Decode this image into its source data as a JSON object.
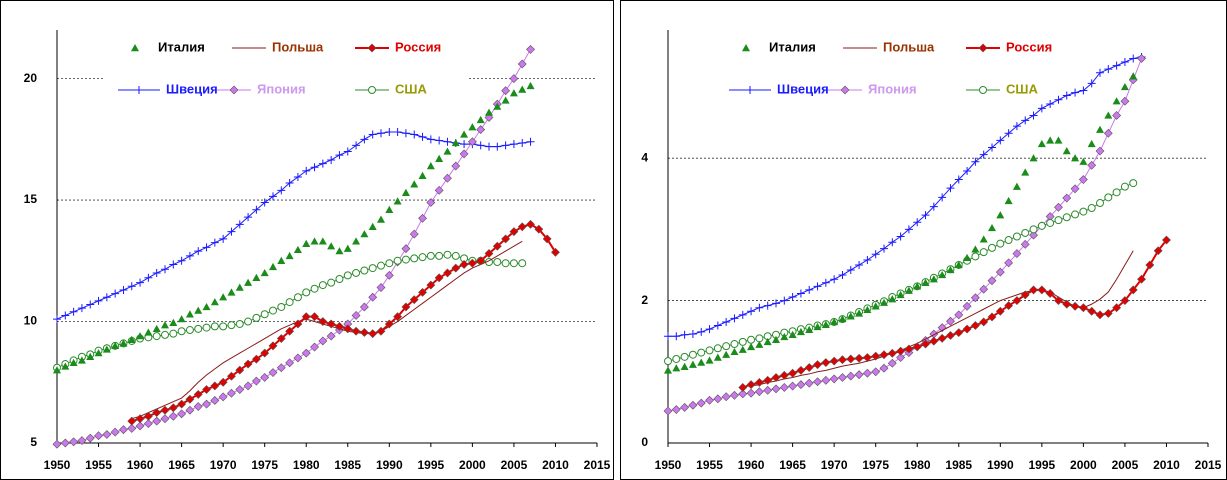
{
  "chart_data": [
    {
      "type": "line",
      "xlim": [
        1950,
        2015
      ],
      "xticks": [
        1950,
        1955,
        1960,
        1965,
        1970,
        1975,
        1980,
        1985,
        1990,
        1995,
        2000,
        2005,
        2010,
        2015
      ],
      "ylim": [
        5,
        22
      ],
      "yticks": [
        5,
        10,
        15,
        20
      ],
      "grid": true,
      "x": [
        1950,
        1951,
        1952,
        1953,
        1954,
        1955,
        1956,
        1957,
        1958,
        1959,
        1960,
        1961,
        1962,
        1963,
        1964,
        1965,
        1966,
        1967,
        1968,
        1969,
        1970,
        1971,
        1972,
        1973,
        1974,
        1975,
        1976,
        1977,
        1978,
        1979,
        1980,
        1981,
        1982,
        1983,
        1984,
        1985,
        1986,
        1987,
        1988,
        1989,
        1990,
        1991,
        1992,
        1993,
        1994,
        1995,
        1996,
        1997,
        1998,
        1999,
        2000,
        2001,
        2002,
        2003,
        2004,
        2005,
        2006,
        2007,
        2008,
        2009,
        2010
      ],
      "series": [
        {
          "name": "Италия",
          "color": "#1a8c1a",
          "label_color": "#000000",
          "marker": "triangle",
          "line": false,
          "values": [
            8.0,
            8.15,
            8.3,
            8.4,
            8.55,
            8.7,
            8.85,
            9.0,
            9.1,
            9.25,
            9.4,
            9.55,
            9.7,
            9.85,
            9.95,
            10.1,
            10.3,
            10.45,
            10.6,
            10.8,
            11.0,
            11.2,
            11.4,
            11.6,
            11.8,
            12.0,
            12.25,
            12.5,
            12.7,
            12.95,
            13.2,
            13.3,
            13.3,
            13.1,
            12.9,
            13.0,
            13.3,
            13.6,
            13.9,
            14.2,
            14.6,
            14.95,
            15.3,
            15.65,
            16.0,
            16.4,
            16.7,
            17.0,
            17.35,
            17.7,
            18.0,
            18.3,
            18.6,
            18.85,
            19.1,
            19.4,
            19.55,
            19.7,
            null,
            null,
            null
          ]
        },
        {
          "name": "Польша",
          "color": "#8b1a1a",
          "label_color": "#993300",
          "marker": "none",
          "line": true,
          "values": [
            null,
            null,
            null,
            null,
            null,
            null,
            null,
            null,
            null,
            6.0,
            6.1,
            6.25,
            6.4,
            6.55,
            6.7,
            6.85,
            7.15,
            7.5,
            7.8,
            8.05,
            8.3,
            8.5,
            8.7,
            8.9,
            9.1,
            9.3,
            9.5,
            9.7,
            9.85,
            10.0,
            10.1,
            10.0,
            9.9,
            9.8,
            9.7,
            9.6,
            9.55,
            9.5,
            9.5,
            9.6,
            9.8,
            10.0,
            10.25,
            10.5,
            10.75,
            11.0,
            11.25,
            11.5,
            11.75,
            12.0,
            12.2,
            12.35,
            12.5,
            12.7,
            12.9,
            13.1,
            13.3,
            null,
            null,
            null,
            null
          ]
        },
        {
          "name": "Россия",
          "color": "#e00000",
          "label_color": "#e00000",
          "marker": "diamond",
          "line": true,
          "values": [
            null,
            null,
            null,
            null,
            null,
            null,
            null,
            null,
            null,
            5.9,
            6.0,
            6.1,
            6.25,
            6.35,
            6.45,
            6.6,
            6.8,
            7.0,
            7.2,
            7.35,
            7.5,
            7.75,
            8.0,
            8.25,
            8.45,
            8.7,
            9.0,
            9.3,
            9.6,
            9.9,
            10.2,
            10.2,
            10.0,
            9.9,
            9.8,
            9.7,
            9.6,
            9.55,
            9.5,
            9.6,
            9.9,
            10.2,
            10.6,
            10.9,
            11.2,
            11.5,
            11.8,
            12.0,
            12.2,
            12.35,
            12.4,
            12.5,
            12.8,
            13.1,
            13.4,
            13.7,
            13.9,
            14.0,
            13.8,
            13.4,
            12.85
          ]
        },
        {
          "name": "Швеция",
          "color": "#1a1aff",
          "label_color": "#1a1aff",
          "marker": "plus",
          "line": true,
          "values": [
            10.1,
            10.25,
            10.4,
            10.55,
            10.7,
            10.85,
            11.0,
            11.15,
            11.3,
            11.45,
            11.6,
            11.8,
            12.0,
            12.15,
            12.35,
            12.5,
            12.7,
            12.9,
            13.05,
            13.25,
            13.4,
            13.7,
            14.0,
            14.3,
            14.6,
            14.9,
            15.15,
            15.4,
            15.7,
            15.95,
            16.2,
            16.35,
            16.5,
            16.65,
            16.85,
            17.0,
            17.25,
            17.5,
            17.7,
            17.75,
            17.8,
            17.8,
            17.75,
            17.7,
            17.6,
            17.5,
            17.45,
            17.4,
            17.35,
            17.3,
            17.3,
            17.25,
            17.2,
            17.2,
            17.25,
            17.3,
            17.35,
            17.4,
            null,
            null,
            null
          ]
        },
        {
          "name": "Япония",
          "color": "#cc77ee",
          "label_color": "#cc99ee",
          "marker": "diamond",
          "line": true,
          "values": [
            4.95,
            5.0,
            5.05,
            5.1,
            5.2,
            5.3,
            5.35,
            5.45,
            5.55,
            5.6,
            5.7,
            5.8,
            5.9,
            6.0,
            6.1,
            6.2,
            6.35,
            6.5,
            6.6,
            6.75,
            6.9,
            7.05,
            7.2,
            7.35,
            7.55,
            7.7,
            7.9,
            8.1,
            8.3,
            8.5,
            8.7,
            8.95,
            9.2,
            9.4,
            9.65,
            9.9,
            10.25,
            10.6,
            11.0,
            11.4,
            11.9,
            12.45,
            13.0,
            13.6,
            14.25,
            14.9,
            15.4,
            15.9,
            16.4,
            16.9,
            17.4,
            17.9,
            18.4,
            18.95,
            19.5,
            20.0,
            20.6,
            21.2,
            null,
            null,
            null
          ]
        },
        {
          "name": "США",
          "color": "#2e8b2e",
          "label_color": "#999900",
          "marker": "circle",
          "line": true,
          "values": [
            8.1,
            8.25,
            8.4,
            8.55,
            8.65,
            8.8,
            8.9,
            9.0,
            9.1,
            9.2,
            9.3,
            9.35,
            9.4,
            9.45,
            9.5,
            9.6,
            9.65,
            9.7,
            9.75,
            9.8,
            9.8,
            9.85,
            9.9,
            10.0,
            10.15,
            10.3,
            10.45,
            10.6,
            10.8,
            11.0,
            11.2,
            11.35,
            11.5,
            11.6,
            11.75,
            11.9,
            12.0,
            12.1,
            12.2,
            12.3,
            12.4,
            12.5,
            12.55,
            12.6,
            12.65,
            12.7,
            12.7,
            12.75,
            12.7,
            12.6,
            12.5,
            12.5,
            12.45,
            12.45,
            12.4,
            12.4,
            12.4,
            null,
            null,
            null,
            null
          ]
        }
      ]
    },
    {
      "type": "line",
      "xlim": [
        1950,
        2015
      ],
      "xticks": [
        1950,
        1955,
        1960,
        1965,
        1970,
        1975,
        1980,
        1985,
        1990,
        1995,
        2000,
        2005,
        2010,
        2015
      ],
      "ylim": [
        0,
        5.8
      ],
      "yticks": [
        0,
        2,
        4
      ],
      "grid": true,
      "x": [
        1950,
        1951,
        1952,
        1953,
        1954,
        1955,
        1956,
        1957,
        1958,
        1959,
        1960,
        1961,
        1962,
        1963,
        1964,
        1965,
        1966,
        1967,
        1968,
        1969,
        1970,
        1971,
        1972,
        1973,
        1974,
        1975,
        1976,
        1977,
        1978,
        1979,
        1980,
        1981,
        1982,
        1983,
        1984,
        1985,
        1986,
        1987,
        1988,
        1989,
        1990,
        1991,
        1992,
        1993,
        1994,
        1995,
        1996,
        1997,
        1998,
        1999,
        2000,
        2001,
        2002,
        2003,
        2004,
        2005,
        2006,
        2007,
        2008,
        2009,
        2010
      ],
      "series": [
        {
          "name": "Италия",
          "color": "#1a8c1a",
          "label_color": "#000000",
          "marker": "triangle",
          "line": false,
          "values": [
            1.02,
            1.05,
            1.07,
            1.1,
            1.13,
            1.16,
            1.2,
            1.24,
            1.28,
            1.31,
            1.35,
            1.38,
            1.42,
            1.45,
            1.49,
            1.52,
            1.56,
            1.59,
            1.63,
            1.66,
            1.7,
            1.74,
            1.78,
            1.82,
            1.87,
            1.92,
            1.97,
            2.02,
            2.08,
            2.14,
            2.2,
            2.25,
            2.3,
            2.36,
            2.43,
            2.5,
            2.6,
            2.72,
            2.86,
            3.02,
            3.2,
            3.4,
            3.6,
            3.8,
            4.0,
            4.2,
            4.25,
            4.25,
            4.1,
            4.0,
            3.95,
            4.2,
            4.4,
            4.6,
            4.8,
            5.0,
            5.15,
            null,
            null,
            null,
            null
          ]
        },
        {
          "name": "Польша",
          "color": "#8b1a1a",
          "label_color": "#993300",
          "marker": "none",
          "line": true,
          "values": [
            null,
            null,
            null,
            null,
            null,
            null,
            null,
            null,
            null,
            null,
            0.8,
            0.82,
            0.85,
            0.87,
            0.9,
            0.92,
            0.95,
            0.97,
            1.0,
            1.02,
            1.05,
            1.08,
            1.1,
            1.12,
            1.15,
            1.18,
            1.22,
            1.26,
            1.3,
            1.35,
            1.4,
            1.46,
            1.52,
            1.58,
            1.64,
            1.7,
            1.76,
            1.82,
            1.88,
            1.94,
            2.0,
            2.04,
            2.08,
            2.12,
            2.14,
            2.15,
            2.12,
            2.05,
            1.98,
            1.92,
            1.9,
            1.95,
            2.02,
            2.12,
            2.3,
            2.5,
            2.7,
            null,
            null,
            null,
            null
          ]
        },
        {
          "name": "Россия",
          "color": "#e00000",
          "label_color": "#e00000",
          "marker": "diamond",
          "line": true,
          "values": [
            null,
            null,
            null,
            null,
            null,
            null,
            null,
            null,
            null,
            0.78,
            0.82,
            0.85,
            0.88,
            0.92,
            0.95,
            0.98,
            1.02,
            1.06,
            1.1,
            1.13,
            1.15,
            1.17,
            1.18,
            1.19,
            1.2,
            1.22,
            1.24,
            1.26,
            1.29,
            1.32,
            1.35,
            1.39,
            1.43,
            1.47,
            1.51,
            1.55,
            1.6,
            1.65,
            1.7,
            1.77,
            1.85,
            1.93,
            2.0,
            2.08,
            2.15,
            2.15,
            2.1,
            2.0,
            1.95,
            1.92,
            1.9,
            1.85,
            1.8,
            1.82,
            1.9,
            2.0,
            2.15,
            2.3,
            2.5,
            2.7,
            2.85
          ]
        },
        {
          "name": "Швеция",
          "color": "#1a1aff",
          "label_color": "#1a1aff",
          "marker": "plus",
          "line": true,
          "values": [
            1.5,
            1.5,
            1.52,
            1.53,
            1.56,
            1.6,
            1.65,
            1.7,
            1.75,
            1.8,
            1.85,
            1.9,
            1.93,
            1.96,
            2.0,
            2.05,
            2.1,
            2.15,
            2.2,
            2.25,
            2.3,
            2.36,
            2.43,
            2.5,
            2.57,
            2.65,
            2.73,
            2.82,
            2.9,
            3.0,
            3.1,
            3.2,
            3.32,
            3.45,
            3.58,
            3.7,
            3.82,
            3.95,
            4.05,
            4.15,
            4.25,
            4.35,
            4.45,
            4.53,
            4.6,
            4.7,
            4.76,
            4.82,
            4.88,
            4.92,
            4.95,
            5.05,
            5.2,
            5.25,
            5.3,
            5.35,
            5.4,
            5.42,
            null,
            null,
            null
          ]
        },
        {
          "name": "Япония",
          "color": "#cc77ee",
          "label_color": "#cc99ee",
          "marker": "diamond",
          "line": true,
          "values": [
            0.45,
            0.47,
            0.5,
            0.53,
            0.56,
            0.6,
            0.62,
            0.65,
            0.67,
            0.69,
            0.7,
            0.72,
            0.74,
            0.76,
            0.78,
            0.8,
            0.82,
            0.84,
            0.86,
            0.88,
            0.9,
            0.92,
            0.94,
            0.96,
            0.98,
            1.0,
            1.05,
            1.12,
            1.2,
            1.27,
            1.35,
            1.44,
            1.53,
            1.62,
            1.71,
            1.8,
            1.92,
            2.04,
            2.16,
            2.28,
            2.4,
            2.53,
            2.66,
            2.79,
            2.92,
            3.05,
            3.18,
            3.31,
            3.44,
            3.57,
            3.7,
            3.9,
            4.1,
            4.35,
            4.6,
            4.8,
            5.1,
            5.4,
            null,
            null,
            null
          ]
        },
        {
          "name": "США",
          "color": "#2e8b2e",
          "label_color": "#999900",
          "marker": "circle",
          "line": true,
          "values": [
            1.15,
            1.18,
            1.21,
            1.24,
            1.27,
            1.3,
            1.33,
            1.36,
            1.39,
            1.42,
            1.45,
            1.47,
            1.5,
            1.52,
            1.55,
            1.57,
            1.6,
            1.62,
            1.65,
            1.67,
            1.7,
            1.74,
            1.79,
            1.84,
            1.89,
            1.94,
            1.99,
            2.05,
            2.1,
            2.15,
            2.2,
            2.26,
            2.32,
            2.38,
            2.44,
            2.5,
            2.56,
            2.62,
            2.68,
            2.74,
            2.8,
            2.85,
            2.9,
            2.95,
            3.0,
            3.05,
            3.09,
            3.13,
            3.17,
            3.21,
            3.25,
            3.3,
            3.37,
            3.45,
            3.52,
            3.6,
            3.65,
            null,
            null,
            null,
            null
          ]
        }
      ]
    }
  ]
}
